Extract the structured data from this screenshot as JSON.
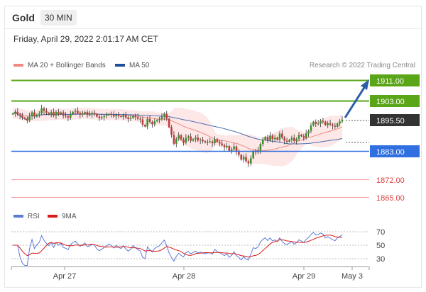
{
  "header": {
    "title": "Gold",
    "timeframe": "30 MIN"
  },
  "datetime": "Friday, April 29, 2022 2:01:17 AM CET",
  "legend": {
    "ma20": "MA 20 + Bollinger Bands",
    "ma50": "MA 50",
    "copyright": "Research © 2022 Trading Central",
    "rsi": "RSI",
    "ma9": "9MA"
  },
  "colors": {
    "green": "#5aa618",
    "blue": "#2f6fe0",
    "red": "#e46a6a",
    "dark": "#333333",
    "arrow": "#2a5fa8"
  },
  "levels": [
    {
      "value": "1911.00",
      "kind": "resistance",
      "style": "badge-green"
    },
    {
      "value": "1903.00",
      "kind": "resistance",
      "style": "badge-green"
    },
    {
      "value": "1895.50",
      "kind": "last",
      "style": "badge-dark"
    },
    {
      "value": "1883.00",
      "kind": "pivot",
      "style": "badge-blue"
    },
    {
      "value": "1872.00",
      "kind": "support",
      "style": "text-red"
    },
    {
      "value": "1865.00",
      "kind": "support",
      "style": "text-red"
    }
  ],
  "rsi_axis": [
    "70",
    "50",
    "30"
  ],
  "x_axis": [
    "Apr 27",
    "Apr 28",
    "Apr 29",
    "May 3"
  ],
  "chart_data": {
    "type": "candlestick",
    "prices": [
      1897.8,
      1898.6,
      1897.6,
      1897.1,
      1896.3,
      1895.9,
      1895.2,
      1896.9,
      1898.4,
      1896.7,
      1897.5,
      1898.0,
      1900.0,
      1899.0,
      1898.2,
      1897.6,
      1898.5,
      1897.1,
      1898.6,
      1897.8,
      1898.4,
      1897.1,
      1896.8,
      1896.3,
      1897.8,
      1898.6,
      1899.0,
      1898.2,
      1897.5,
      1897.9,
      1898.5,
      1897.4,
      1897.6,
      1898.2,
      1897.8,
      1896.7,
      1896.1,
      1896.5,
      1896.9,
      1897.3,
      1897.8,
      1897.5,
      1896.8,
      1897.4,
      1896.9,
      1896.6,
      1897.2,
      1896.4,
      1895.8,
      1896.2,
      1897.0,
      1896.5,
      1895.9,
      1895.6,
      1893.5,
      1892.8,
      1895.8,
      1894.6,
      1893.7,
      1894.8,
      1895.3,
      1895.7,
      1896.7,
      1897.8,
      1895.9,
      1892.5,
      1889.5,
      1886.0,
      1888.0,
      1889.4,
      1887.6,
      1886.4,
      1888.4,
      1888.9,
      1887.2,
      1887.8,
      1888.4,
      1887.3,
      1887.6,
      1887.0,
      1886.5,
      1886.8,
      1886.9,
      1886.2,
      1887.8,
      1886.7,
      1886.1,
      1885.4,
      1884.6,
      1885.1,
      1883.2,
      1883.8,
      1884.9,
      1882.8,
      1881.6,
      1879.7,
      1880.8,
      1879.1,
      1878.2,
      1880.3,
      1883.1,
      1882.6,
      1883.4,
      1885.9,
      1887.6,
      1888.7,
      1887.4,
      1889.2,
      1887.8,
      1888.4,
      1887.6,
      1890.0,
      1888.4,
      1887.2,
      1886.8,
      1887.5,
      1888.3,
      1887.1,
      1887.9,
      1889.5,
      1889.0,
      1888.3,
      1890.1,
      1891.0,
      1893.2,
      1894.7,
      1893.8,
      1894.0,
      1895.1,
      1894.7,
      1893.4,
      1894.1,
      1893.6,
      1893.1,
      1892.7,
      1894.0,
      1894.8,
      1895.5
    ]
  }
}
